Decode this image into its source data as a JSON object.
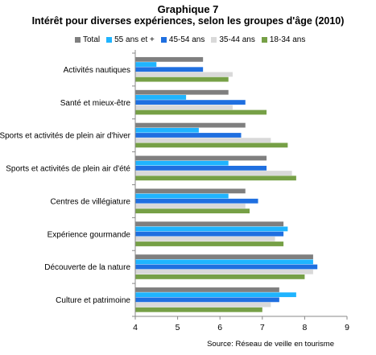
{
  "chart_data": {
    "type": "bar",
    "orientation": "horizontal",
    "title": "Graphique 7",
    "subtitle": "Intérêt pour diverses expériences, selon les groupes d'âge (2010)",
    "categories": [
      "Activités nautiques",
      "Santé et mieux-être",
      "Sports et activités de plein air d'hiver",
      "Sports et activités de plein air d'été",
      "Centres de villégiature",
      "Expérience gourmande",
      "Découverte de la nature",
      "Culture et patrimoine"
    ],
    "series": [
      {
        "name": "Total",
        "color": "#7f7f7f",
        "values": [
          5.6,
          6.2,
          6.6,
          7.1,
          6.6,
          7.5,
          8.2,
          7.4
        ]
      },
      {
        "name": "55 ans et +",
        "color": "#1fb4ff",
        "values": [
          4.5,
          5.2,
          5.5,
          6.2,
          6.2,
          7.6,
          8.2,
          7.8
        ]
      },
      {
        "name": "45-54 ans",
        "color": "#1f6fe0",
        "values": [
          5.6,
          6.6,
          6.5,
          7.1,
          6.9,
          7.5,
          8.3,
          7.4
        ]
      },
      {
        "name": "35-44 ans",
        "color": "#d9d9d9",
        "values": [
          6.3,
          6.3,
          7.2,
          7.7,
          6.6,
          7.3,
          8.2,
          7.2
        ]
      },
      {
        "name": "18-34 ans",
        "color": "#76a046",
        "values": [
          6.2,
          7.1,
          7.6,
          7.8,
          6.7,
          7.5,
          8.0,
          7.0
        ]
      }
    ],
    "xlim": [
      4,
      9
    ],
    "xticks": [
      "4",
      "5",
      "6",
      "7",
      "8",
      "9"
    ],
    "grid": false,
    "legend_position": "top"
  },
  "source": "Source: Réseau de veille en tourisme"
}
